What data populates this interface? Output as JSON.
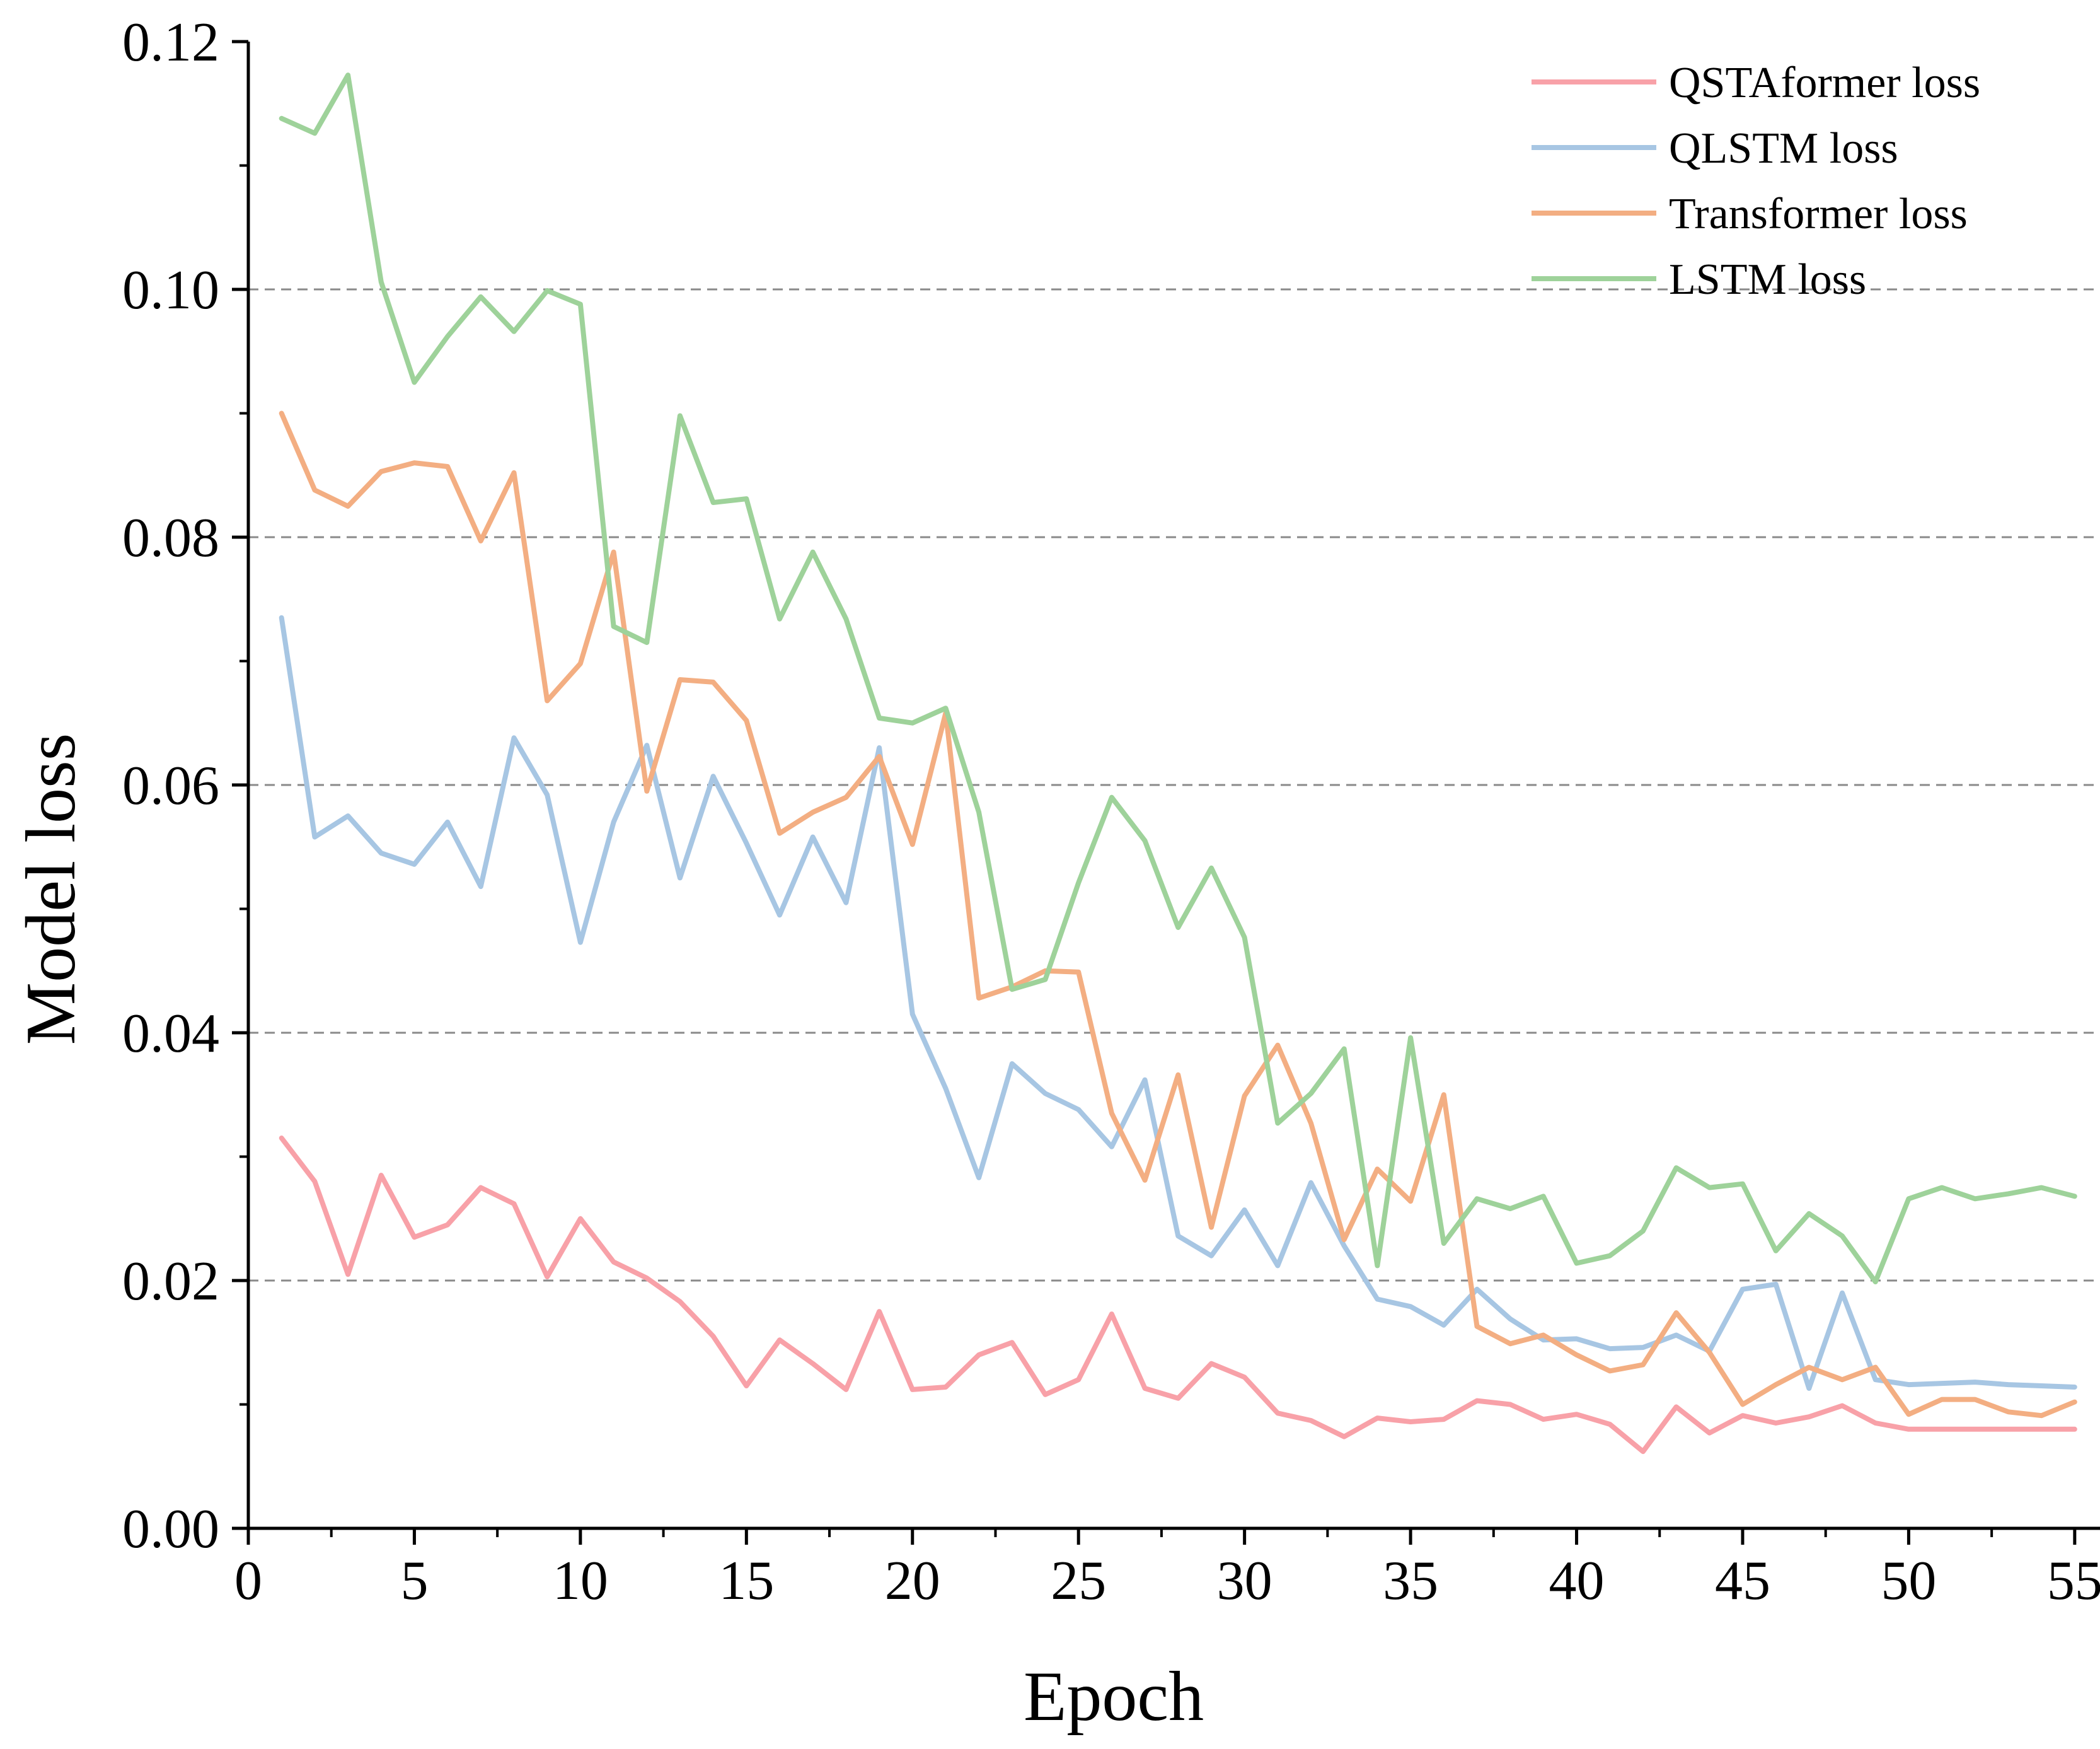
{
  "chart_data": {
    "type": "line",
    "title": "",
    "xlabel": "Epoch",
    "ylabel": "Model loss",
    "xlim": [
      0,
      55.8
    ],
    "ylim": [
      0,
      0.12
    ],
    "xticks": [
      0,
      5,
      10,
      15,
      20,
      25,
      30,
      35,
      40,
      45,
      50,
      55
    ],
    "yticks": [
      0.0,
      0.02,
      0.04,
      0.06,
      0.08,
      0.1,
      0.12
    ],
    "xtick_labels": [
      "0",
      "5",
      "10",
      "15",
      "20",
      "25",
      "30",
      "35",
      "40",
      "45",
      "50",
      "55"
    ],
    "ytick_labels": [
      "0.00",
      "0.02",
      "0.04",
      "0.06",
      "0.08",
      "0.10",
      "0.12"
    ],
    "grid_y_dashed": [
      0.02,
      0.04,
      0.06,
      0.08,
      0.1
    ],
    "legend_position": "top-right",
    "x": [
      1,
      2,
      3,
      4,
      5,
      6,
      7,
      8,
      9,
      10,
      11,
      12,
      13,
      14,
      15,
      16,
      17,
      18,
      19,
      20,
      21,
      22,
      23,
      24,
      25,
      26,
      27,
      28,
      29,
      30,
      31,
      32,
      33,
      34,
      35,
      36,
      37,
      38,
      39,
      40,
      41,
      42,
      43,
      44,
      45,
      46,
      47,
      48,
      49,
      50,
      51,
      52,
      53,
      54,
      55
    ],
    "series": [
      {
        "name": "QSTAformer loss",
        "color": "#f8a1a8",
        "values": [
          0.0315,
          0.028,
          0.0205,
          0.0285,
          0.0235,
          0.0245,
          0.0275,
          0.0262,
          0.0203,
          0.025,
          0.0215,
          0.0202,
          0.0183,
          0.0155,
          0.0115,
          0.0152,
          0.0133,
          0.0112,
          0.0175,
          0.0112,
          0.0114,
          0.014,
          0.015,
          0.0108,
          0.012,
          0.0173,
          0.0113,
          0.0105,
          0.0133,
          0.0122,
          0.0093,
          0.0087,
          0.0074,
          0.0089,
          0.0086,
          0.0088,
          0.0103,
          0.01,
          0.0088,
          0.0092,
          0.0084,
          0.0062,
          0.0098,
          0.0077,
          0.0091,
          0.0085,
          0.009,
          0.0099,
          0.0085,
          0.008,
          0.008,
          0.008,
          0.008,
          0.008,
          0.008
        ]
      },
      {
        "name": "QLSTM loss",
        "color": "#a7c6e3",
        "values": [
          0.0735,
          0.0558,
          0.0575,
          0.0545,
          0.0536,
          0.057,
          0.0518,
          0.0638,
          0.0592,
          0.0473,
          0.057,
          0.0632,
          0.0525,
          0.0607,
          0.0553,
          0.0495,
          0.0558,
          0.0505,
          0.063,
          0.0415,
          0.0355,
          0.0283,
          0.0375,
          0.0351,
          0.0338,
          0.0308,
          0.0362,
          0.0236,
          0.022,
          0.0257,
          0.0212,
          0.0279,
          0.0228,
          0.0185,
          0.0179,
          0.0164,
          0.0193,
          0.0169,
          0.0152,
          0.0153,
          0.0145,
          0.0146,
          0.0156,
          0.0143,
          0.0193,
          0.0197,
          0.0113,
          0.019,
          0.012,
          0.0116,
          0.0117,
          0.0118,
          0.0116,
          0.0115,
          0.0114
        ]
      },
      {
        "name": "Transformer loss",
        "color": "#f3ae82",
        "values": [
          0.09,
          0.0838,
          0.0825,
          0.0853,
          0.086,
          0.0857,
          0.0797,
          0.0852,
          0.0668,
          0.0698,
          0.0788,
          0.0595,
          0.0685,
          0.0683,
          0.0652,
          0.0561,
          0.0578,
          0.059,
          0.0623,
          0.0552,
          0.0658,
          0.0428,
          0.0437,
          0.045,
          0.0449,
          0.0335,
          0.0281,
          0.0366,
          0.0243,
          0.0349,
          0.039,
          0.0327,
          0.0233,
          0.029,
          0.0264,
          0.035,
          0.0163,
          0.0149,
          0.0156,
          0.014,
          0.0127,
          0.0132,
          0.0174,
          0.0142,
          0.01,
          0.0116,
          0.013,
          0.012,
          0.013,
          0.0092,
          0.0104,
          0.0104,
          0.0094,
          0.0091,
          0.0102
        ]
      },
      {
        "name": "LSTM loss",
        "color": "#9ed29a",
        "values": [
          0.1138,
          0.1126,
          0.1173,
          0.1006,
          0.0925,
          0.0962,
          0.0994,
          0.0966,
          0.0999,
          0.0988,
          0.0728,
          0.0715,
          0.0898,
          0.0828,
          0.0831,
          0.0734,
          0.0788,
          0.0734,
          0.0654,
          0.065,
          0.0662,
          0.0578,
          0.0435,
          0.0443,
          0.0521,
          0.059,
          0.0555,
          0.0485,
          0.0533,
          0.0477,
          0.0327,
          0.0351,
          0.0387,
          0.0212,
          0.0396,
          0.023,
          0.0266,
          0.0258,
          0.0268,
          0.0214,
          0.022,
          0.024,
          0.0291,
          0.0275,
          0.0278,
          0.0224,
          0.0254,
          0.0236,
          0.0199,
          0.0266,
          0.0275,
          0.0266,
          0.027,
          0.0275,
          0.0268
        ]
      }
    ]
  }
}
